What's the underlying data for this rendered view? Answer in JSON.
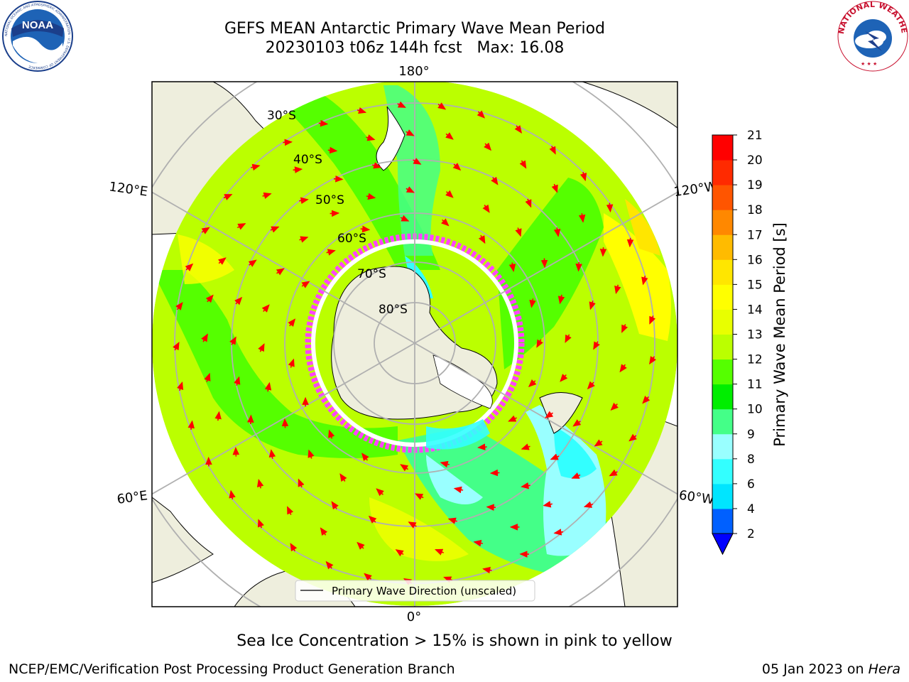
{
  "title": {
    "line1": "GEFS MEAN Antarctic Primary Wave Mean Period",
    "line2": "20230103 t06z 144h fcst   Max: 16.08"
  },
  "map": {
    "lon_labels": [
      "180°",
      "120°E",
      "120°W",
      "60°E",
      "60°W",
      "0°"
    ],
    "lat_labels": [
      "30°S",
      "40°S",
      "50°S",
      "60°S",
      "70°S",
      "80°S"
    ],
    "legend": "Primary Wave Direction (unscaled)",
    "colors": {
      "land": "#eeeedd",
      "ice_pink": "#ff44ff",
      "ice_white": "#ffffff",
      "arrow": "#ff0000",
      "graticule": "#b0b0b0"
    }
  },
  "colorbar": {
    "title": "Primary Wave Mean Period [s]",
    "ticks": [
      "2",
      "4",
      "6",
      "8",
      "9",
      "10",
      "11",
      "12",
      "13",
      "14",
      "15",
      "16",
      "17",
      "18",
      "19",
      "20",
      "21"
    ],
    "colors": [
      "#0060ff",
      "#00e5ff",
      "#33ffff",
      "#99ffff",
      "#44ff88",
      "#00ee00",
      "#55ff00",
      "#bbff00",
      "#e8ff00",
      "#ffff00",
      "#ffe600",
      "#ffbb00",
      "#ff8800",
      "#ff5500",
      "#ff2a00",
      "#ff0000"
    ],
    "under_color": "#0000ff"
  },
  "caption": "Sea Ice Concentration > 15% is shown in pink to yellow",
  "footer": {
    "left": "NCEP/EMC/Verification Post Processing Product Generation Branch",
    "right_date": "05 Jan 2023 on ",
    "right_host": "Hera"
  },
  "logos": {
    "noaa": "NOAA",
    "nws": "NATIONAL WEATHER SERVICE",
    "noaa_ring": "NATIONAL OCEANIC AND ATMOSPHERIC ADMINISTRATION · U.S. DEPARTMENT OF COMMERCE"
  }
}
